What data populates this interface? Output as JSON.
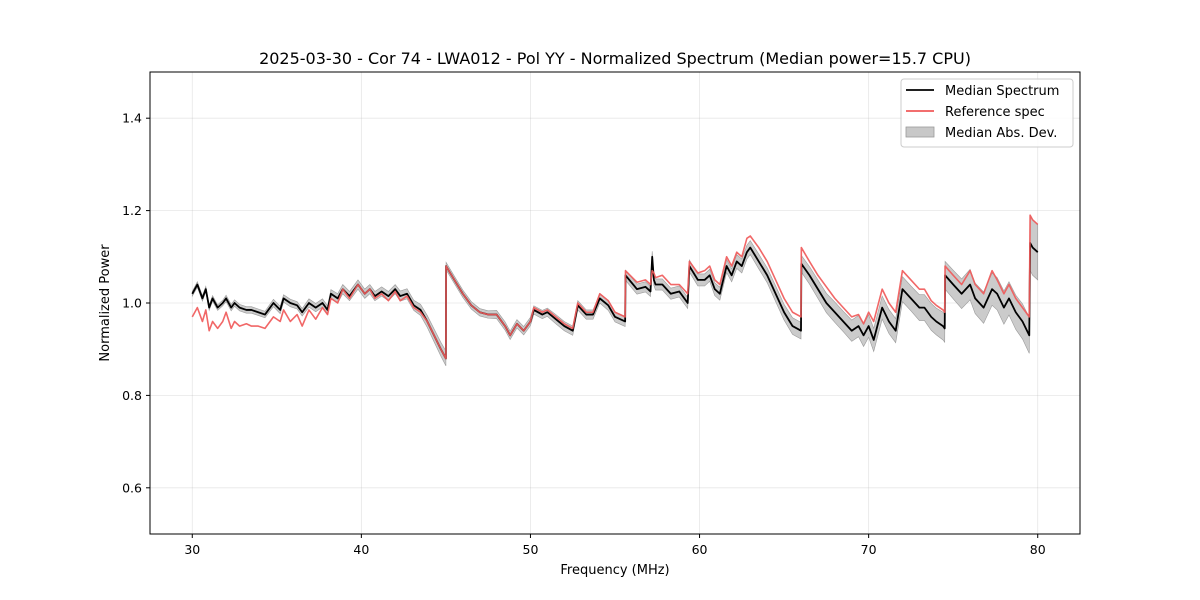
{
  "chart_data": {
    "type": "line",
    "title": "2025-03-30 - Cor 74 - LWA012 - Pol YY - Normalized Spectrum (Median power=15.7 CPU)",
    "xlabel": "Frequency (MHz)",
    "ylabel": "Normalized Power",
    "xlim": [
      27.5,
      82.5
    ],
    "ylim": [
      0.5,
      1.5
    ],
    "xticks": [
      30,
      40,
      50,
      60,
      70,
      80
    ],
    "xtick_labels": [
      "30",
      "40",
      "50",
      "60",
      "70",
      "80"
    ],
    "yticks": [
      0.6,
      0.8,
      1.0,
      1.2,
      1.4
    ],
    "ytick_labels": [
      "0.6",
      "0.8",
      "1.0",
      "1.2",
      "1.4"
    ],
    "grid": true,
    "legend_position": "top-right",
    "colors": {
      "median": "#000000",
      "reference": "#f05a5a",
      "mad_fill": "#c8c8c8",
      "mad_edge": "#9a9a9a",
      "overlap": "#8b0000"
    },
    "legend": [
      {
        "label": "Median Spectrum",
        "kind": "line",
        "color": "#000000"
      },
      {
        "label": "Reference spec",
        "kind": "line",
        "color": "#f05a5a"
      },
      {
        "label": "Median Abs. Dev.",
        "kind": "patch",
        "color": "#c8c8c8"
      }
    ],
    "series": [
      {
        "name": "Median Spectrum",
        "x": [
          30.0,
          30.3,
          30.6,
          30.8,
          31.0,
          31.2,
          31.5,
          31.8,
          32.0,
          32.3,
          32.5,
          32.8,
          33.2,
          33.5,
          33.9,
          34.3,
          34.8,
          35.2,
          35.4,
          35.8,
          36.2,
          36.5,
          36.9,
          37.3,
          37.7,
          38.0,
          38.2,
          38.6,
          38.9,
          39.3,
          39.8,
          40.2,
          40.5,
          40.8,
          41.2,
          41.6,
          42.0,
          42.3,
          42.7,
          43.1,
          43.5,
          43.9,
          44.3,
          44.7,
          45.0,
          45.01,
          45.5,
          46.0,
          46.5,
          47.0,
          47.5,
          48.0,
          48.5,
          48.8,
          49.2,
          49.6,
          50.0,
          50.2,
          50.7,
          51.0,
          51.5,
          52.0,
          52.5,
          52.8,
          53.3,
          53.7,
          54.1,
          54.6,
          55.0,
          55.6,
          55.62,
          56.3,
          56.8,
          57.1,
          57.2,
          57.3,
          57.4,
          57.8,
          58.3,
          58.8,
          59.3,
          59.4,
          59.9,
          60.3,
          60.6,
          60.9,
          61.2,
          61.6,
          61.9,
          62.2,
          62.5,
          62.8,
          63.0,
          63.5,
          64.0,
          64.5,
          65.0,
          65.5,
          66.0,
          66.02,
          66.5,
          67.0,
          67.5,
          68.0,
          68.5,
          69.0,
          69.4,
          69.7,
          70.0,
          70.3,
          70.8,
          71.2,
          71.6,
          72.0,
          72.5,
          73.0,
          73.3,
          73.7,
          74.0,
          74.4,
          74.5,
          74.52,
          75.0,
          75.5,
          76.0,
          76.3,
          76.8,
          77.3,
          77.6,
          78.0,
          78.3,
          78.7,
          79.1,
          79.5,
          79.55,
          79.7,
          80.0
        ],
        "y": [
          1.02,
          1.04,
          1.01,
          1.03,
          0.99,
          1.01,
          0.99,
          1.0,
          1.01,
          0.99,
          1.0,
          0.99,
          0.985,
          0.985,
          0.98,
          0.975,
          1.0,
          0.985,
          1.01,
          1.0,
          0.995,
          0.98,
          1.0,
          0.99,
          1.0,
          0.985,
          1.02,
          1.01,
          1.03,
          1.015,
          1.04,
          1.02,
          1.03,
          1.015,
          1.025,
          1.015,
          1.03,
          1.015,
          1.02,
          0.995,
          0.985,
          0.96,
          0.93,
          0.9,
          0.88,
          1.08,
          1.05,
          1.02,
          0.995,
          0.98,
          0.975,
          0.975,
          0.95,
          0.93,
          0.955,
          0.94,
          0.96,
          0.985,
          0.975,
          0.98,
          0.965,
          0.95,
          0.94,
          0.995,
          0.975,
          0.975,
          1.01,
          0.995,
          0.97,
          0.96,
          1.06,
          1.03,
          1.035,
          1.025,
          1.1,
          1.05,
          1.04,
          1.04,
          1.02,
          1.025,
          1.0,
          1.08,
          1.05,
          1.05,
          1.06,
          1.03,
          1.02,
          1.08,
          1.06,
          1.09,
          1.08,
          1.11,
          1.12,
          1.09,
          1.06,
          1.02,
          0.98,
          0.95,
          0.94,
          1.085,
          1.06,
          1.03,
          1.0,
          0.98,
          0.96,
          0.94,
          0.95,
          0.93,
          0.95,
          0.92,
          0.99,
          0.96,
          0.94,
          1.03,
          1.01,
          0.99,
          0.99,
          0.97,
          0.96,
          0.95,
          0.945,
          1.06,
          1.04,
          1.02,
          1.04,
          1.01,
          0.99,
          1.03,
          1.02,
          0.99,
          1.01,
          0.98,
          0.96,
          0.93,
          1.13,
          1.12,
          1.11
        ]
      },
      {
        "name": "Reference spec",
        "x": [
          30.0,
          30.3,
          30.6,
          30.8,
          31.0,
          31.2,
          31.5,
          31.8,
          32.0,
          32.3,
          32.5,
          32.8,
          33.2,
          33.5,
          33.9,
          34.3,
          34.8,
          35.2,
          35.4,
          35.8,
          36.2,
          36.5,
          36.9,
          37.3,
          37.7,
          38.0,
          38.2,
          38.6,
          38.9,
          39.3,
          39.8,
          40.2,
          40.5,
          40.8,
          41.2,
          41.6,
          42.0,
          42.3,
          42.7,
          43.1,
          43.5,
          43.9,
          44.3,
          44.7,
          45.0,
          45.01,
          45.5,
          46.0,
          46.5,
          47.0,
          47.5,
          48.0,
          48.5,
          48.8,
          49.2,
          49.6,
          50.0,
          50.2,
          50.7,
          51.0,
          51.5,
          52.0,
          52.5,
          52.8,
          53.3,
          53.7,
          54.1,
          54.6,
          55.0,
          55.6,
          55.62,
          56.3,
          56.8,
          57.1,
          57.2,
          57.3,
          57.4,
          57.8,
          58.3,
          58.8,
          59.3,
          59.4,
          59.9,
          60.3,
          60.6,
          60.9,
          61.2,
          61.6,
          61.9,
          62.2,
          62.5,
          62.8,
          63.0,
          63.5,
          64.0,
          64.5,
          65.0,
          65.5,
          66.0,
          66.02,
          66.5,
          67.0,
          67.5,
          68.0,
          68.5,
          69.0,
          69.4,
          69.7,
          70.0,
          70.3,
          70.8,
          71.2,
          71.6,
          72.0,
          72.5,
          73.0,
          73.3,
          73.7,
          74.0,
          74.4,
          74.5,
          74.52,
          75.0,
          75.5,
          76.0,
          76.3,
          76.8,
          77.3,
          77.6,
          78.0,
          78.3,
          78.7,
          79.1,
          79.5,
          79.55,
          79.7,
          80.0
        ],
        "y": [
          0.97,
          0.99,
          0.96,
          0.985,
          0.94,
          0.96,
          0.945,
          0.96,
          0.98,
          0.945,
          0.96,
          0.95,
          0.955,
          0.95,
          0.95,
          0.945,
          0.97,
          0.96,
          0.985,
          0.96,
          0.975,
          0.95,
          0.985,
          0.965,
          0.99,
          0.975,
          1.01,
          1.0,
          1.03,
          1.01,
          1.04,
          1.02,
          1.03,
          1.01,
          1.02,
          1.005,
          1.025,
          1.005,
          1.015,
          0.99,
          0.98,
          0.96,
          0.93,
          0.9,
          0.88,
          1.08,
          1.05,
          1.02,
          0.995,
          0.98,
          0.975,
          0.975,
          0.95,
          0.93,
          0.955,
          0.94,
          0.96,
          0.99,
          0.98,
          0.985,
          0.97,
          0.955,
          0.945,
          1.0,
          0.98,
          0.98,
          1.02,
          1.005,
          0.98,
          0.97,
          1.07,
          1.045,
          1.05,
          1.04,
          1.07,
          1.065,
          1.055,
          1.06,
          1.04,
          1.04,
          1.02,
          1.09,
          1.065,
          1.07,
          1.08,
          1.05,
          1.04,
          1.1,
          1.08,
          1.11,
          1.1,
          1.14,
          1.145,
          1.12,
          1.09,
          1.05,
          1.01,
          0.98,
          0.97,
          1.12,
          1.09,
          1.06,
          1.035,
          1.01,
          0.99,
          0.97,
          0.975,
          0.955,
          0.98,
          0.96,
          1.03,
          1.0,
          0.98,
          1.07,
          1.05,
          1.03,
          1.03,
          1.005,
          0.995,
          0.985,
          0.98,
          1.08,
          1.06,
          1.04,
          1.07,
          1.04,
          1.02,
          1.07,
          1.05,
          1.02,
          1.04,
          1.01,
          0.99,
          0.97,
          1.19,
          1.18,
          1.17
        ]
      }
    ],
    "mad_band": {
      "name": "Median Abs. Dev.",
      "x": [
        30.0,
        30.3,
        30.6,
        30.8,
        31.0,
        31.2,
        31.5,
        31.8,
        32.0,
        32.3,
        32.5,
        32.8,
        33.2,
        33.5,
        33.9,
        34.3,
        34.8,
        35.2,
        35.4,
        35.8,
        36.2,
        36.5,
        36.9,
        37.3,
        37.7,
        38.0,
        38.2,
        38.6,
        38.9,
        39.3,
        39.8,
        40.2,
        40.5,
        40.8,
        41.2,
        41.6,
        42.0,
        42.3,
        42.7,
        43.1,
        43.5,
        43.9,
        44.3,
        44.7,
        45.0,
        45.01,
        45.5,
        46.0,
        46.5,
        47.0,
        47.5,
        48.0,
        48.5,
        48.8,
        49.2,
        49.6,
        50.0,
        50.2,
        50.7,
        51.0,
        51.5,
        52.0,
        52.5,
        52.8,
        53.3,
        53.7,
        54.1,
        54.6,
        55.0,
        55.6,
        55.62,
        56.3,
        56.8,
        57.1,
        57.2,
        57.3,
        57.4,
        57.8,
        58.3,
        58.8,
        59.3,
        59.4,
        59.9,
        60.3,
        60.6,
        60.9,
        61.2,
        61.6,
        61.9,
        62.2,
        62.5,
        62.8,
        63.0,
        63.5,
        64.0,
        64.5,
        65.0,
        65.5,
        66.0,
        66.02,
        66.5,
        67.0,
        67.5,
        68.0,
        68.5,
        69.0,
        69.4,
        69.7,
        70.0,
        70.3,
        70.8,
        71.2,
        71.6,
        72.0,
        72.5,
        73.0,
        73.3,
        73.7,
        74.0,
        74.4,
        74.5,
        74.52,
        75.0,
        75.5,
        76.0,
        76.3,
        76.8,
        77.3,
        77.6,
        78.0,
        78.3,
        78.7,
        79.1,
        79.5,
        79.55,
        79.7,
        80.0
      ],
      "halfwidth": [
        0.005,
        0.006,
        0.006,
        0.006,
        0.006,
        0.006,
        0.006,
        0.006,
        0.007,
        0.007,
        0.007,
        0.007,
        0.007,
        0.007,
        0.007,
        0.007,
        0.008,
        0.008,
        0.008,
        0.008,
        0.008,
        0.008,
        0.009,
        0.009,
        0.009,
        0.009,
        0.009,
        0.01,
        0.01,
        0.01,
        0.01,
        0.01,
        0.01,
        0.01,
        0.01,
        0.01,
        0.01,
        0.011,
        0.011,
        0.011,
        0.012,
        0.013,
        0.014,
        0.015,
        0.016,
        0.008,
        0.008,
        0.008,
        0.008,
        0.008,
        0.008,
        0.009,
        0.009,
        0.009,
        0.009,
        0.009,
        0.009,
        0.009,
        0.009,
        0.009,
        0.01,
        0.01,
        0.01,
        0.01,
        0.01,
        0.01,
        0.01,
        0.011,
        0.011,
        0.011,
        0.011,
        0.011,
        0.011,
        0.011,
        0.012,
        0.012,
        0.012,
        0.012,
        0.012,
        0.012,
        0.012,
        0.013,
        0.013,
        0.013,
        0.013,
        0.014,
        0.014,
        0.014,
        0.014,
        0.015,
        0.015,
        0.015,
        0.015,
        0.016,
        0.016,
        0.017,
        0.017,
        0.018,
        0.018,
        0.018,
        0.019,
        0.02,
        0.021,
        0.022,
        0.022,
        0.023,
        0.023,
        0.024,
        0.024,
        0.025,
        0.025,
        0.026,
        0.026,
        0.027,
        0.027,
        0.028,
        0.028,
        0.029,
        0.029,
        0.03,
        0.03,
        0.03,
        0.031,
        0.032,
        0.033,
        0.033,
        0.034,
        0.035,
        0.035,
        0.036,
        0.036,
        0.037,
        0.038,
        0.039,
        0.06,
        0.06,
        0.06
      ]
    }
  }
}
